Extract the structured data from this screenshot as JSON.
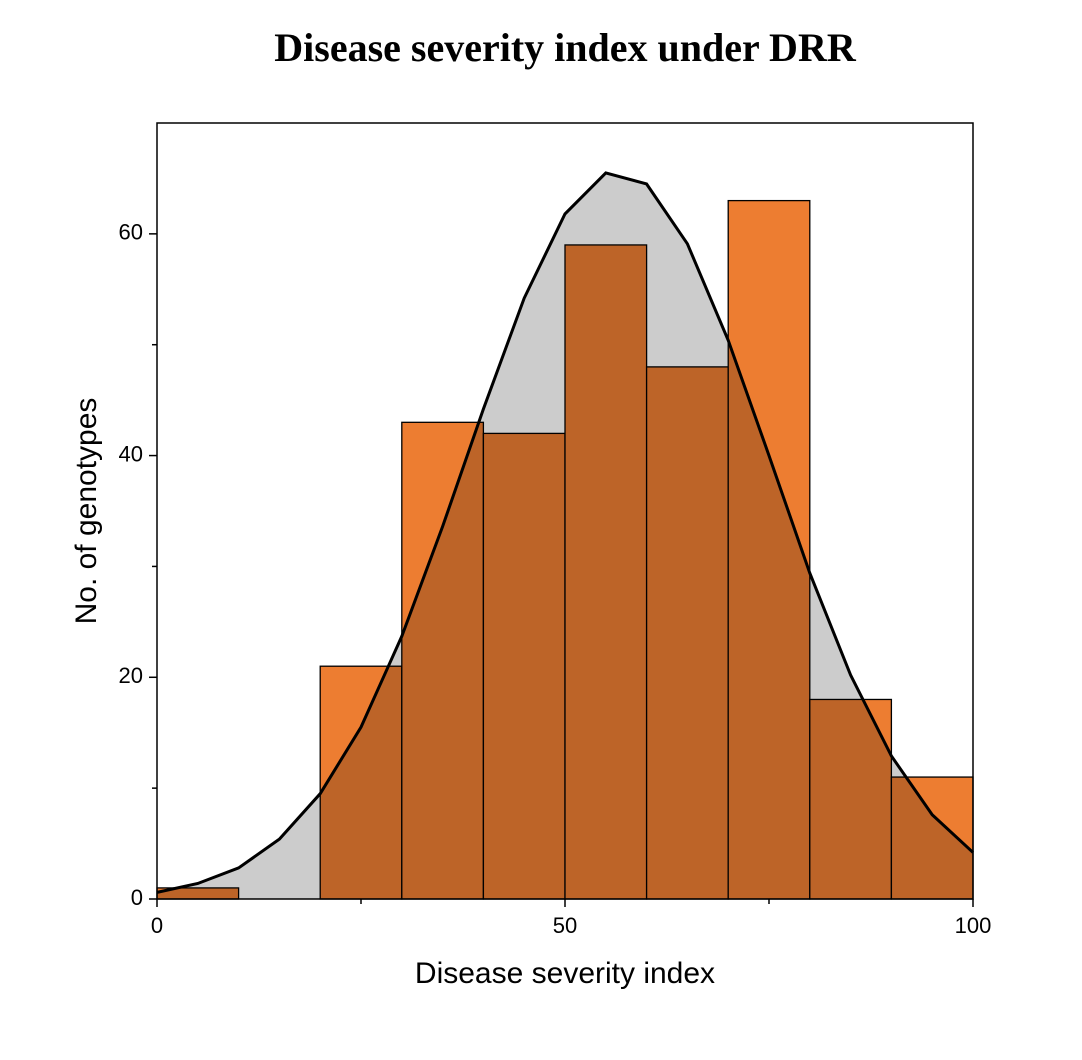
{
  "chart_data": {
    "type": "histogram",
    "title": "Disease severity index under DRR",
    "x_label": "Disease severity index",
    "y_label": "No. of genotypes",
    "bins": [
      0,
      10,
      20,
      30,
      40,
      50,
      60,
      70,
      80,
      90,
      100
    ],
    "values": [
      1,
      0,
      21,
      43,
      42,
      59,
      48,
      63,
      18,
      11
    ],
    "color": "#ed7d31",
    "curve": {
      "x": [
        0,
        5,
        10,
        15,
        20,
        25,
        30,
        35,
        40,
        45,
        50,
        55,
        60,
        65,
        70,
        75,
        80,
        85,
        90,
        95,
        100
      ],
      "y": [
        0.6,
        1.4,
        2.8,
        5.4,
        9.5,
        15.5,
        23.7,
        33.6,
        44.2,
        54.2,
        61.8,
        65.5,
        64.5,
        59.1,
        50.4,
        40.0,
        29.4,
        20.2,
        12.9,
        7.6,
        4.2
      ],
      "fill": "#cccccc",
      "color": "#000000"
    },
    "xlim": [
      0,
      100
    ],
    "xticks": [
      0,
      50,
      100
    ],
    "xminorticks": [
      25,
      75
    ],
    "ylim": [
      0,
      70
    ],
    "yticks": [
      0,
      20,
      40,
      60
    ],
    "yminorticks": [
      10,
      30,
      50
    ]
  }
}
